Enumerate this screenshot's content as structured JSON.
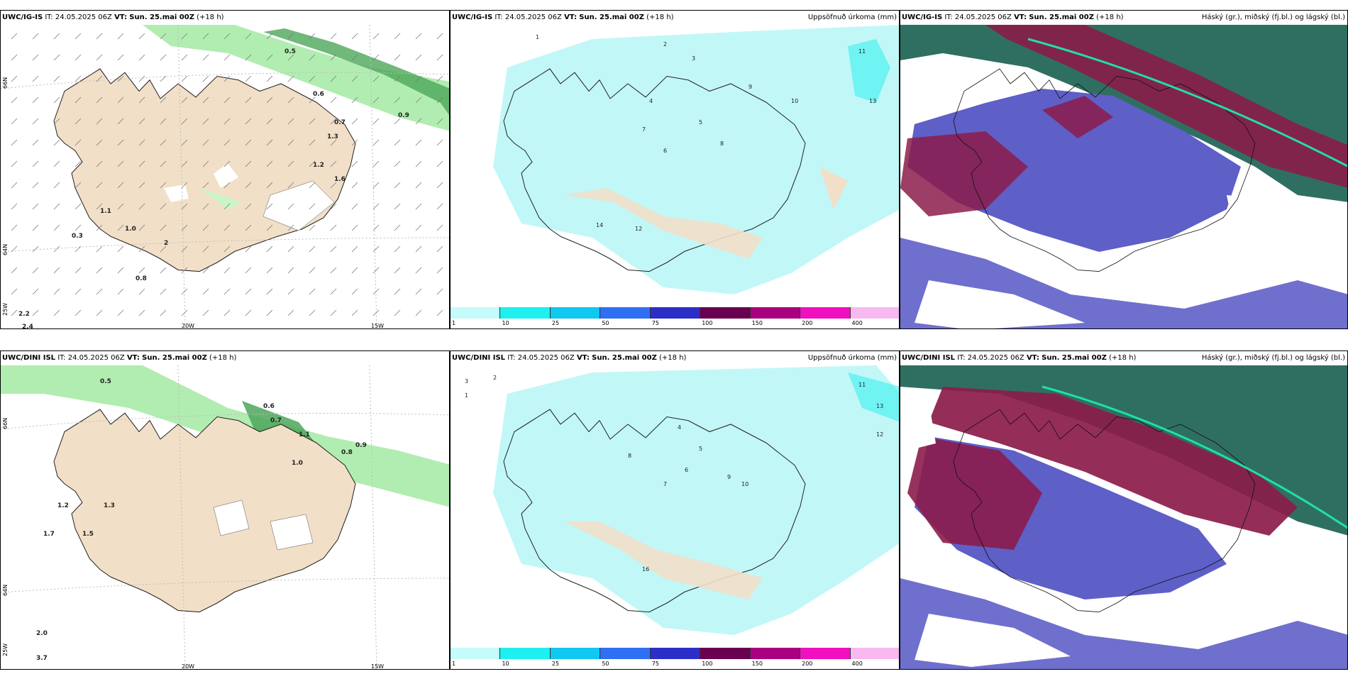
{
  "panels": {
    "p1": {
      "model": "UWC/IG-IS",
      "it_label": "IT:",
      "it": "24.05.2025 06Z",
      "vt_label": "VT:",
      "vt": "Sun. 25.mai 00Z",
      "lead": "(+18 h)",
      "right": ""
    },
    "p2": {
      "model": "UWC/IG-IS",
      "it_label": "IT:",
      "it": "24.05.2025 06Z",
      "vt_label": "VT:",
      "vt": "Sun. 25.mai 00Z",
      "lead": "(+18 h)",
      "right": "Uppsöfnuð úrkoma (mm)"
    },
    "p3": {
      "model": "UWC/IG-IS",
      "it_label": "IT:",
      "it": "24.05.2025 06Z",
      "vt_label": "VT:",
      "vt": "Sun. 25.mai 00Z",
      "lead": "(+18 h)",
      "right": "Háský (gr.), miðský (fj.bl.) og lágský (bl.)"
    },
    "p4": {
      "model": "UWC/DINI ISL",
      "it_label": "IT:",
      "it": "24.05.2025 06Z",
      "vt_label": "VT:",
      "vt": "Sun. 25.mai 00Z",
      "lead": "(+18 h)",
      "right": ""
    },
    "p5": {
      "model": "UWC/DINI ISL",
      "it_label": "IT:",
      "it": "24.05.2025 06Z",
      "vt_label": "VT:",
      "vt": "Sun. 25.mai 00Z",
      "lead": "(+18 h)",
      "right": "Uppsöfnuð úrkoma (mm)"
    },
    "p6": {
      "model": "UWC/DINI ISL",
      "it_label": "IT:",
      "it": "24.05.2025 06Z",
      "vt_label": "VT:",
      "vt": "Sun. 25.mai 00Z",
      "lead": "(+18 h)",
      "right": "Háský (gr.), miðský (fj.bl.) og lágský (bl.)"
    }
  },
  "axis": {
    "lon_20": "20W",
    "lon_15": "15W",
    "lat_66": "66N",
    "lat_64": "64N",
    "lon_25": "25W"
  },
  "colorbar": {
    "labels": [
      "1",
      "10",
      "25",
      "50",
      "75",
      "100",
      "150",
      "200",
      "400"
    ],
    "colors": [
      "#c6fbfb",
      "#1ef0f0",
      "#10c8f0",
      "#2f6ff2",
      "#2b2fc8",
      "#6a0050",
      "#a8007e",
      "#f010c0",
      "#f8b8f0"
    ]
  },
  "colors": {
    "land": "#f2dfc8",
    "precip_light": "#c2f7f7",
    "rain_green": "#9de89d",
    "cloud_high": "#2f6f62",
    "cloud_mid": "#8b1c4a",
    "cloud_low": "#5f5fc8"
  },
  "precip_values_top": [
    "1",
    "2",
    "3",
    "4",
    "5",
    "6",
    "7",
    "8",
    "9",
    "10",
    "11",
    "12",
    "13",
    "14"
  ],
  "precip_values_bottom": [
    "1",
    "2",
    "3",
    "4",
    "5",
    "6",
    "7",
    "8",
    "9",
    "10",
    "11",
    "12",
    "13",
    "16"
  ],
  "rain_values_top": [
    "0.5",
    "0.6",
    "0.7",
    "0.8",
    "0.9",
    "1.0",
    "1.1",
    "1.2",
    "1.3",
    "1.6",
    "2",
    "2.2",
    "2.4",
    "0.3"
  ],
  "rain_values_bottom": [
    "0.5",
    "0.6",
    "0.7",
    "0.8",
    "0.9",
    "1.0",
    "1.1",
    "1.2",
    "1.3",
    "1.5",
    "1.7",
    "2.0",
    "3.7"
  ]
}
